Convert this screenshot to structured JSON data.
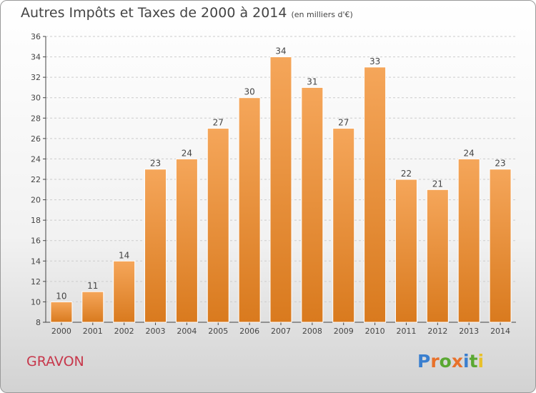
{
  "title": "Autres Impôts et Taxes de 2000 à 2014",
  "subtitle": "(en milliers d'€)",
  "place": "GRAVON",
  "logo": {
    "text": "Proxiti",
    "letters": [
      {
        "ch": "P",
        "color": "#3a7fcf"
      },
      {
        "ch": "r",
        "color": "#e8712a"
      },
      {
        "ch": "o",
        "color": "#5aa832"
      },
      {
        "ch": "x",
        "color": "#e8712a"
      },
      {
        "ch": "i",
        "color": "#3a7fcf"
      },
      {
        "ch": "t",
        "color": "#5aa832"
      },
      {
        "ch": "i",
        "color": "#e8c12a"
      }
    ]
  },
  "colors": {
    "bar_light": "#f5a65a",
    "bar_dark": "#d97a1e",
    "axis": "#444444",
    "grid": "#cccccc",
    "place": "#c7374b"
  },
  "chart_data": {
    "type": "bar",
    "title": "Autres Impôts et Taxes de 2000 à 2014",
    "subtitle": "(en milliers d'€)",
    "xlabel": "",
    "ylabel": "",
    "categories": [
      "2000",
      "2001",
      "2002",
      "2003",
      "2004",
      "2005",
      "2006",
      "2007",
      "2008",
      "2009",
      "2010",
      "2011",
      "2012",
      "2013",
      "2014"
    ],
    "values": [
      10,
      11,
      14,
      23,
      24,
      27,
      30,
      34,
      31,
      27,
      33,
      22,
      21,
      24,
      23
    ],
    "ylim": [
      8,
      36
    ],
    "yticks": [
      8,
      10,
      12,
      14,
      16,
      18,
      20,
      22,
      24,
      26,
      28,
      30,
      32,
      34,
      36
    ],
    "grid": "horizontal dashed",
    "legend": "none"
  }
}
